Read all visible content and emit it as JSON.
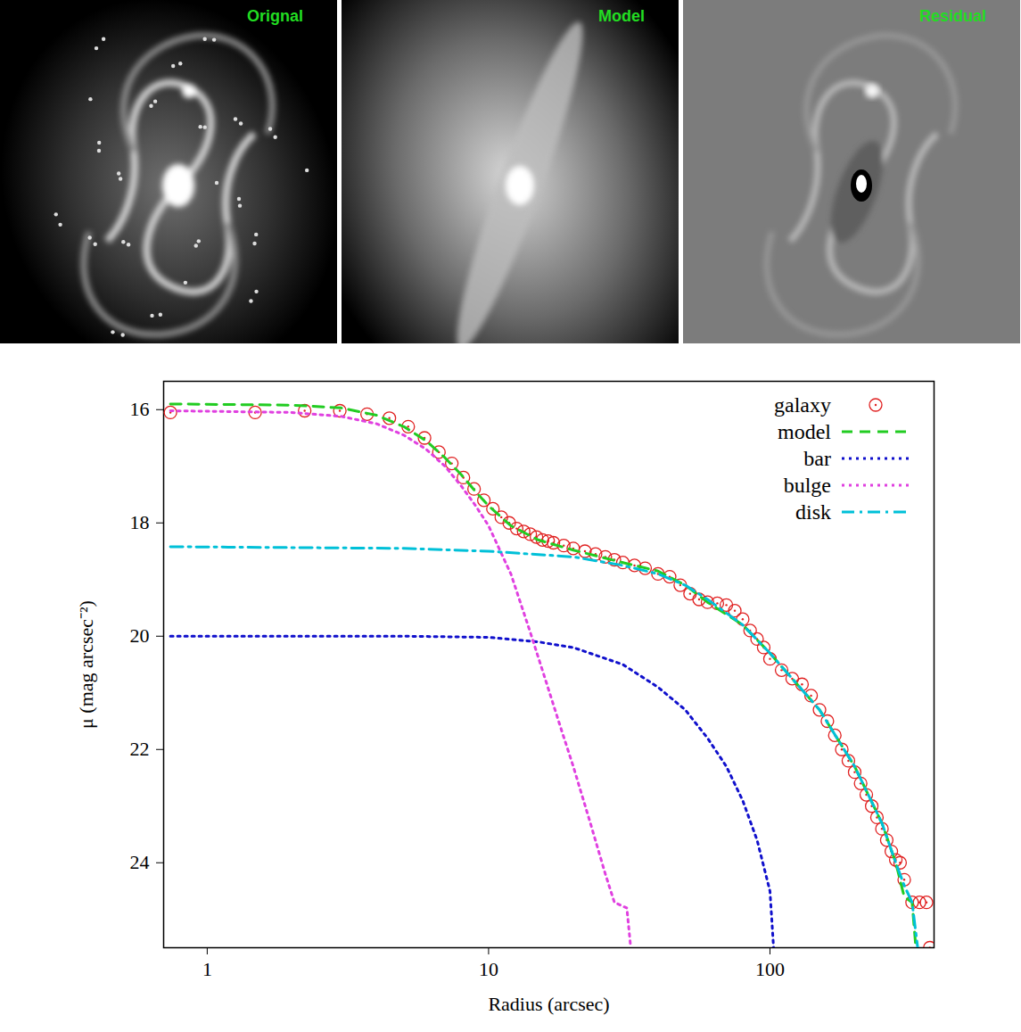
{
  "panels": [
    "Orignal",
    "Model",
    "Residual"
  ],
  "chart_data": {
    "type": "line",
    "x_label": "Radius (arcsec)",
    "y_label": "μ (mag arcsec⁻²)",
    "log": "x",
    "xlim": [
      0.7,
      383
    ],
    "xticks": [
      1,
      10,
      100
    ],
    "ylim": [
      25.5,
      15.5
    ],
    "yticks": [
      16,
      18,
      20,
      22,
      24
    ],
    "legend": "top-right",
    "series": [
      {
        "name": "galaxy",
        "type": "scatter",
        "color": "#e02020",
        "marker": "circle",
        "x": [
          0.74,
          1.48,
          2.22,
          2.96,
          3.7,
          4.44,
          5.18,
          5.92,
          6.66,
          7.4,
          8.14,
          8.88,
          9.62,
          10.36,
          11.1,
          11.84,
          12.58,
          13.32,
          14.06,
          14.8,
          15.54,
          16.28,
          17,
          18.5,
          20,
          22,
          24,
          26,
          28,
          30,
          33,
          36,
          40,
          44,
          48,
          52,
          56,
          60,
          65,
          70,
          75,
          80,
          85,
          90,
          95,
          100,
          110,
          120,
          130,
          140,
          150,
          160,
          170,
          180,
          190,
          200,
          210,
          220,
          230,
          240,
          250,
          260,
          270,
          280,
          290,
          300,
          320,
          340,
          360,
          370
        ],
        "values": [
          16.05,
          16.05,
          16.02,
          16.02,
          16.08,
          16.15,
          16.3,
          16.5,
          16.75,
          16.95,
          17.2,
          17.4,
          17.6,
          17.75,
          17.9,
          18.0,
          18.1,
          18.15,
          18.2,
          18.25,
          18.3,
          18.32,
          18.35,
          18.4,
          18.45,
          18.5,
          18.55,
          18.6,
          18.65,
          18.7,
          18.75,
          18.8,
          18.9,
          18.95,
          19.1,
          19.25,
          19.35,
          19.4,
          19.42,
          19.45,
          19.55,
          19.7,
          19.9,
          20.05,
          20.2,
          20.4,
          20.6,
          20.75,
          20.85,
          21.05,
          21.3,
          21.5,
          21.75,
          22.0,
          22.2,
          22.4,
          22.6,
          22.8,
          23.0,
          23.2,
          23.4,
          23.6,
          23.8,
          23.95,
          24.0,
          24.3,
          24.7,
          24.7,
          24.7,
          25.5
        ]
      },
      {
        "name": "model",
        "color": "#22cc22",
        "line_style": "dashed",
        "x": [
          0.74,
          2,
          3,
          4,
          5,
          6,
          7,
          8,
          9,
          10,
          12,
          15,
          20,
          30,
          40,
          50,
          60,
          80,
          100,
          150,
          200,
          250,
          280,
          300,
          320,
          330
        ],
        "values": [
          15.9,
          15.92,
          15.97,
          16.1,
          16.3,
          16.55,
          16.85,
          17.15,
          17.45,
          17.7,
          18.05,
          18.3,
          18.48,
          18.7,
          18.85,
          19.1,
          19.4,
          19.8,
          20.3,
          21.3,
          22.3,
          23.3,
          24.0,
          24.6,
          24.7,
          25.5
        ]
      },
      {
        "name": "bar",
        "color": "#1010cc",
        "line_style": "dotted",
        "x": [
          0.74,
          5,
          10,
          15,
          20,
          30,
          40,
          50,
          60,
          70,
          80,
          90,
          100,
          103
        ],
        "values": [
          20.0,
          20.0,
          20.02,
          20.1,
          20.2,
          20.5,
          20.9,
          21.3,
          21.8,
          22.3,
          22.9,
          23.6,
          24.5,
          25.5
        ]
      },
      {
        "name": "bulge",
        "color": "#e040e0",
        "line_style": "dotted",
        "x": [
          0.74,
          2,
          3,
          4,
          5,
          6,
          7,
          8,
          9,
          10,
          12,
          14,
          16,
          18,
          20,
          23,
          26,
          28,
          31,
          32
        ],
        "values": [
          16.02,
          16.05,
          16.12,
          16.25,
          16.45,
          16.7,
          17.0,
          17.35,
          17.7,
          18.05,
          18.9,
          19.9,
          20.8,
          21.6,
          22.3,
          23.3,
          24.2,
          24.7,
          24.8,
          25.5
        ]
      },
      {
        "name": "disk",
        "color": "#00c0d8",
        "line_style": "dashdot",
        "x": [
          0.74,
          5,
          10,
          20,
          30,
          40,
          50,
          60,
          80,
          100,
          150,
          200,
          250,
          280,
          300,
          320,
          335
        ],
        "values": [
          18.42,
          18.45,
          18.5,
          18.6,
          18.75,
          18.9,
          19.1,
          19.35,
          19.8,
          20.3,
          21.3,
          22.3,
          23.3,
          24.0,
          24.4,
          24.7,
          25.5
        ]
      }
    ]
  }
}
